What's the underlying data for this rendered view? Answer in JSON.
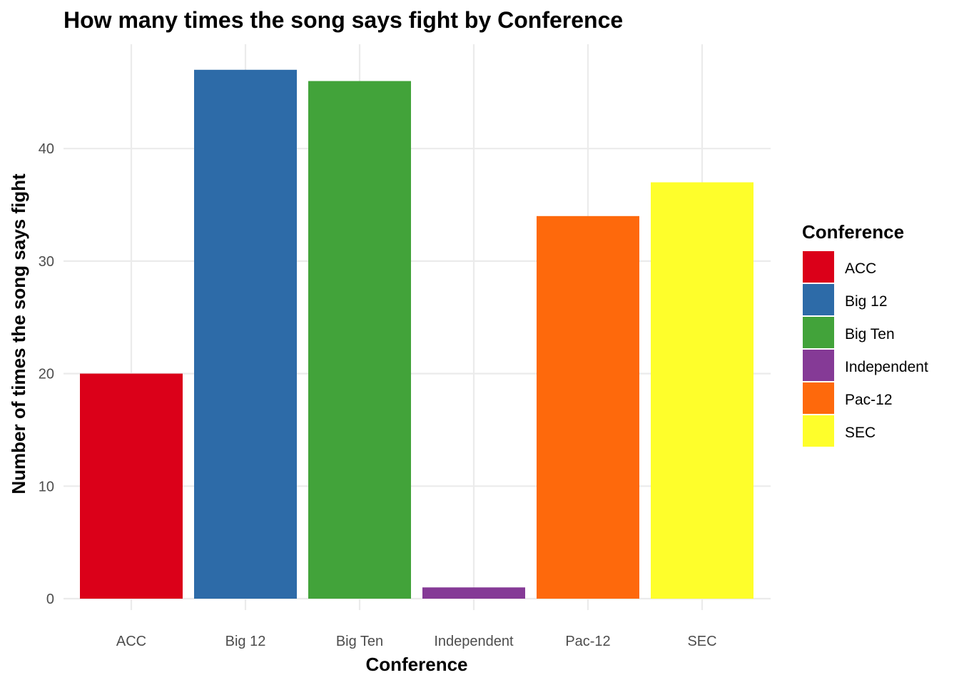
{
  "chart_data": {
    "type": "bar",
    "title": "How many times the song says fight by Conference",
    "xlabel": "Conference",
    "ylabel": "Number of times the song says fight",
    "categories": [
      "ACC",
      "Big 12",
      "Big Ten",
      "Independent",
      "Pac-12",
      "SEC"
    ],
    "values": [
      20,
      47,
      46,
      1,
      34,
      37
    ],
    "colors": [
      "#db0019",
      "#2d6ba8",
      "#42a33a",
      "#853a96",
      "#fe690c",
      "#fefe2b"
    ],
    "ylim": [
      0,
      48
    ],
    "yticks": [
      0,
      10,
      20,
      30,
      40
    ],
    "yticks_labels": [
      "0",
      "10",
      "20",
      "30",
      "40"
    ],
    "grid": true,
    "legend": {
      "title": "Conference",
      "position": "right",
      "items": [
        "ACC",
        "Big 12",
        "Big Ten",
        "Independent",
        "Pac-12",
        "SEC"
      ]
    }
  }
}
